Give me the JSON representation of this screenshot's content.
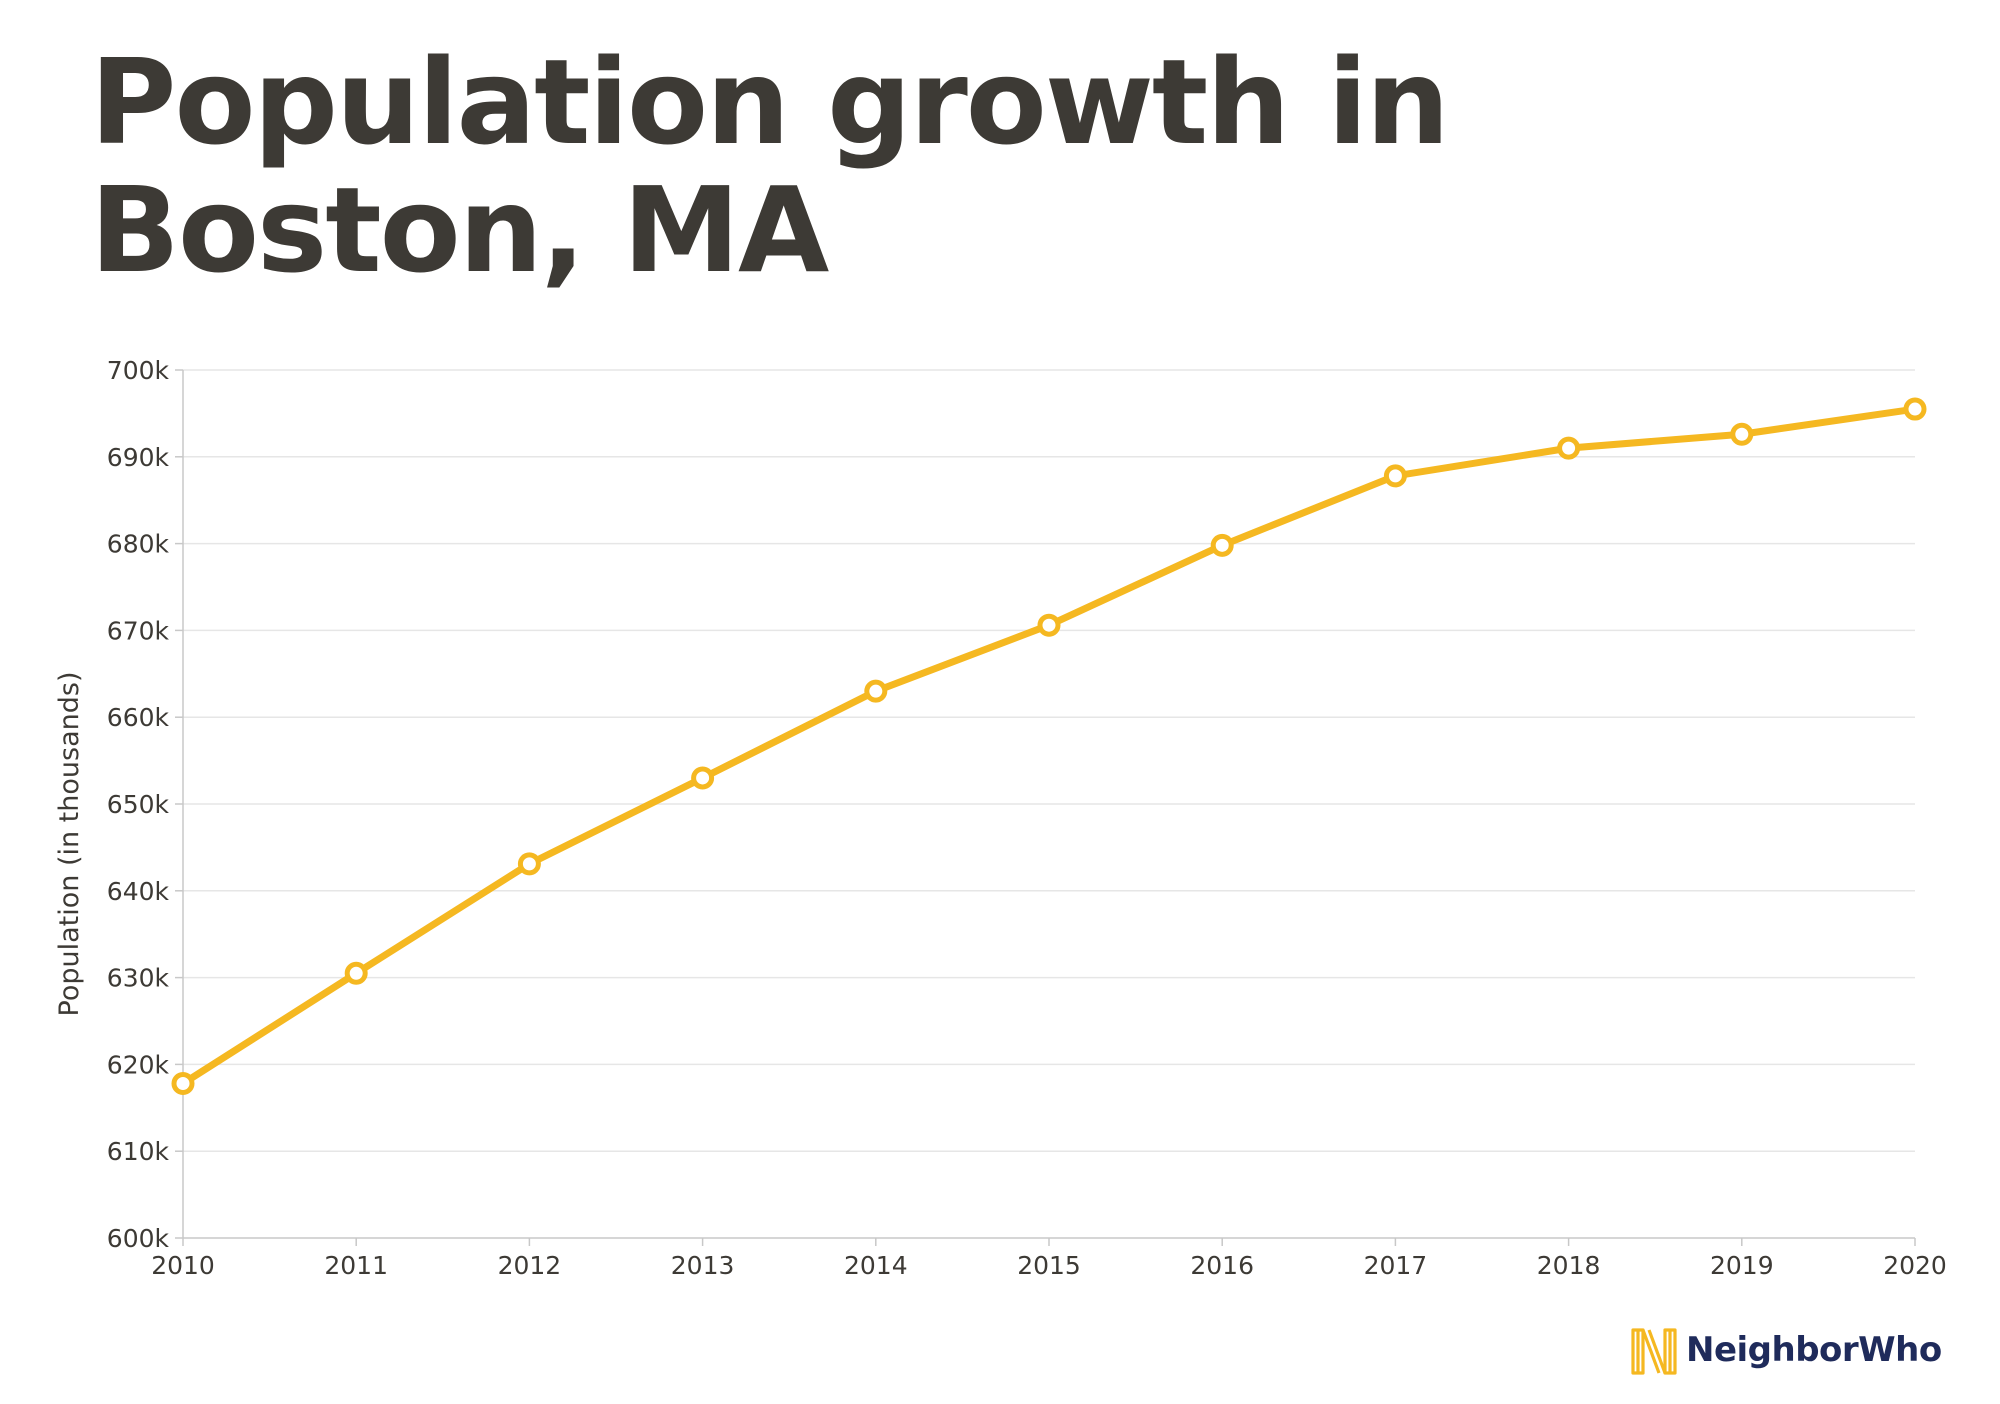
{
  "title_line1": "Population growth in",
  "title_line2": "Boston, MA",
  "brand": {
    "name": "NeighborWho",
    "icon": "neighborwho-logo-icon",
    "color": "#1f2b5b",
    "accent": "#f5b821"
  },
  "chart_data": {
    "type": "line",
    "title": "Population growth in Boston, MA",
    "xlabel": "",
    "ylabel": "Population (in thousands)",
    "x": [
      2010,
      2011,
      2012,
      2013,
      2014,
      2015,
      2016,
      2017,
      2018,
      2019,
      2020
    ],
    "x_tick_labels": [
      "2010",
      "2011",
      "2012",
      "2013",
      "2014",
      "2015",
      "2016",
      "2017",
      "2018",
      "2019",
      "2020"
    ],
    "series": [
      {
        "values": [
          617.8,
          630.5,
          643.1,
          653.0,
          663.0,
          670.6,
          679.8,
          687.8,
          691.0,
          692.6,
          695.5
        ],
        "color": "#f5b821"
      }
    ],
    "ylim": [
      600,
      700
    ],
    "y_ticks": [
      600,
      610,
      620,
      630,
      640,
      650,
      660,
      670,
      680,
      690,
      700
    ],
    "y_tick_labels": [
      "600k",
      "610k",
      "620k",
      "630k",
      "640k",
      "650k",
      "660k",
      "670k",
      "680k",
      "690k",
      "700k"
    ],
    "grid": true,
    "legend": "none",
    "marker": "hollow-circle"
  }
}
